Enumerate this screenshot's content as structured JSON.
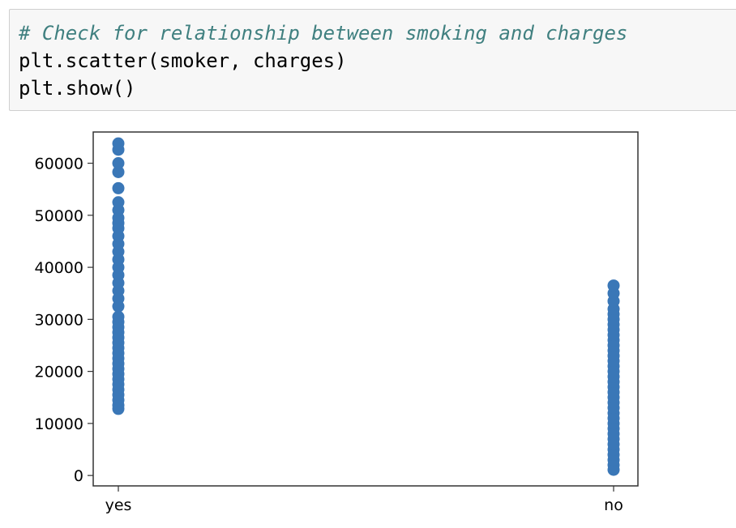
{
  "cell": {
    "code_lines": [
      {
        "text": "# Check for relationship between smoking and charges",
        "kind": "comment"
      },
      {
        "text": "plt.scatter(smoker, charges)",
        "kind": "code"
      },
      {
        "text": "plt.show()",
        "kind": "code"
      }
    ]
  },
  "chart_data": {
    "type": "scatter",
    "title": "",
    "xlabel": "",
    "ylabel": "",
    "categories": [
      "yes",
      "no"
    ],
    "ylim": [
      -2000,
      66000
    ],
    "yticks": [
      0,
      10000,
      20000,
      30000,
      40000,
      50000,
      60000
    ],
    "ytick_labels": [
      "0",
      "10000",
      "20000",
      "30000",
      "40000",
      "50000",
      "60000"
    ],
    "marker_color": "#3a77b7",
    "grid": false,
    "legend": "none",
    "series": [
      {
        "category": "yes",
        "values": [
          12800,
          13500,
          14500,
          15500,
          16500,
          17500,
          18500,
          19500,
          20500,
          21500,
          22500,
          23500,
          24500,
          25500,
          26500,
          27500,
          28500,
          29500,
          30500,
          32500,
          34000,
          35500,
          37000,
          38500,
          40000,
          41500,
          43000,
          44500,
          46000,
          47500,
          48500,
          49500,
          51000,
          52500,
          55200,
          58300,
          60000,
          62600,
          63800
        ]
      },
      {
        "category": "no",
        "values": [
          1100,
          2000,
          3000,
          4000,
          5000,
          6000,
          7000,
          8000,
          9000,
          10000,
          11000,
          12000,
          13000,
          14000,
          15000,
          16000,
          17000,
          18000,
          19000,
          20000,
          21000,
          22000,
          23000,
          24000,
          25000,
          26000,
          27000,
          28000,
          29000,
          30000,
          31000,
          32000,
          33500,
          35000,
          36500
        ]
      }
    ]
  }
}
